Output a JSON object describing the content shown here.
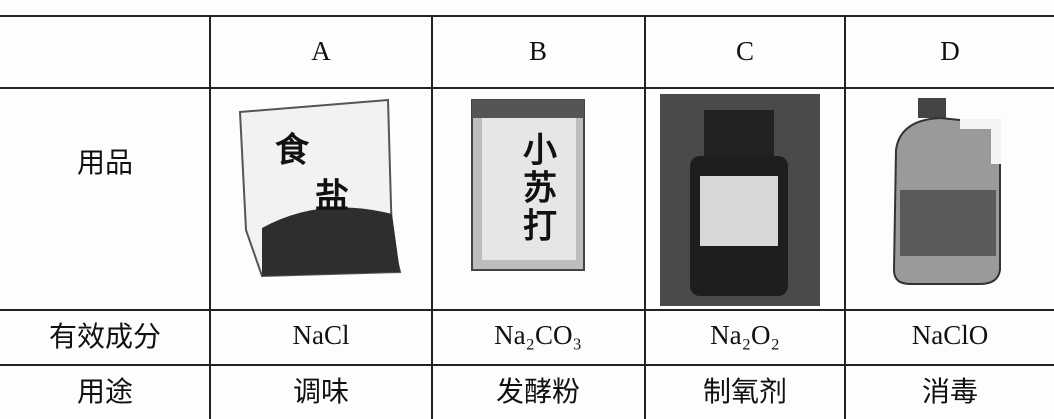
{
  "table": {
    "columns": [
      "A",
      "B",
      "C",
      "D"
    ],
    "product_row": {
      "label": "用品",
      "package_text": [
        [
          "食",
          "盐"
        ],
        [
          "小",
          "苏",
          "打"
        ]
      ]
    },
    "rows": [
      {
        "label": "有效成分",
        "cells": [
          "NaCl",
          "Na₂CO₃",
          "Na₂O₂",
          "NaClO"
        ]
      },
      {
        "label": "用途",
        "cells": [
          "调味",
          "发酵粉",
          "制氧剂",
          "消毒"
        ]
      }
    ]
  }
}
